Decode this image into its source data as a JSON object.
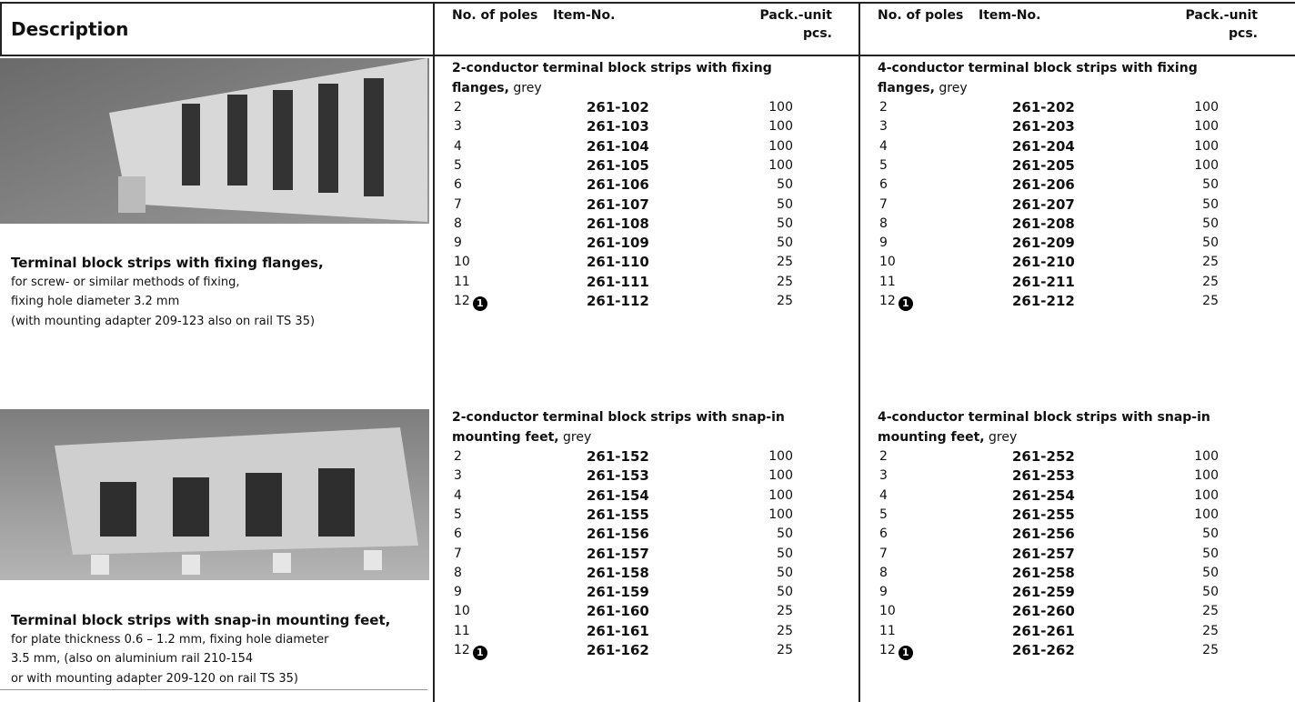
{
  "header": {
    "description": "Description",
    "columns": [
      "No. of poles",
      "Item-No.",
      "Pack.-unit",
      "pcs."
    ]
  },
  "sections": [
    {
      "description": {
        "title": "Terminal block strips with fixing flanges,",
        "lines": [
          "for screw- or similar methods of fixing,",
          "fixing hole diameter 3.2 mm",
          "(with mounting adapter 209-123 also on rail TS 35)"
        ]
      },
      "groups": [
        {
          "title": "2-conductor terminal block strips with fixing",
          "title2": "flanges,",
          "suffix": "grey",
          "rows": [
            {
              "poles": 2,
              "item": "261-102",
              "pack": 100
            },
            {
              "poles": 3,
              "item": "261-103",
              "pack": 100
            },
            {
              "poles": 4,
              "item": "261-104",
              "pack": 100
            },
            {
              "poles": 5,
              "item": "261-105",
              "pack": 100
            },
            {
              "poles": 6,
              "item": "261-106",
              "pack": 50
            },
            {
              "poles": 7,
              "item": "261-107",
              "pack": 50
            },
            {
              "poles": 8,
              "item": "261-108",
              "pack": 50
            },
            {
              "poles": 9,
              "item": "261-109",
              "pack": 50
            },
            {
              "poles": 10,
              "item": "261-110",
              "pack": 25
            },
            {
              "poles": 11,
              "item": "261-111",
              "pack": 25
            },
            {
              "poles": 12,
              "note": "1",
              "item": "261-112",
              "pack": 25
            }
          ]
        },
        {
          "title": "4-conductor terminal block strips with fixing",
          "title2": "flanges,",
          "suffix": "grey",
          "rows": [
            {
              "poles": 2,
              "item": "261-202",
              "pack": 100
            },
            {
              "poles": 3,
              "item": "261-203",
              "pack": 100
            },
            {
              "poles": 4,
              "item": "261-204",
              "pack": 100
            },
            {
              "poles": 5,
              "item": "261-205",
              "pack": 100
            },
            {
              "poles": 6,
              "item": "261-206",
              "pack": 50
            },
            {
              "poles": 7,
              "item": "261-207",
              "pack": 50
            },
            {
              "poles": 8,
              "item": "261-208",
              "pack": 50
            },
            {
              "poles": 9,
              "item": "261-209",
              "pack": 50
            },
            {
              "poles": 10,
              "item": "261-210",
              "pack": 25
            },
            {
              "poles": 11,
              "item": "261-211",
              "pack": 25
            },
            {
              "poles": 12,
              "note": "1",
              "item": "261-212",
              "pack": 25
            }
          ]
        }
      ]
    },
    {
      "description": {
        "title": "Terminal block strips with snap-in mounting feet,",
        "lines": [
          "for plate thickness 0.6 – 1.2 mm, fixing hole diameter",
          "3.5 mm, (also on aluminium rail 210-154",
          "or with mounting adapter 209-120 on rail TS 35)"
        ]
      },
      "groups": [
        {
          "title": "2-conductor terminal block strips with snap-in",
          "title2": "mounting feet,",
          "suffix": "grey",
          "rows": [
            {
              "poles": 2,
              "item": "261-152",
              "pack": 100
            },
            {
              "poles": 3,
              "item": "261-153",
              "pack": 100
            },
            {
              "poles": 4,
              "item": "261-154",
              "pack": 100
            },
            {
              "poles": 5,
              "item": "261-155",
              "pack": 100
            },
            {
              "poles": 6,
              "item": "261-156",
              "pack": 50
            },
            {
              "poles": 7,
              "item": "261-157",
              "pack": 50
            },
            {
              "poles": 8,
              "item": "261-158",
              "pack": 50
            },
            {
              "poles": 9,
              "item": "261-159",
              "pack": 50
            },
            {
              "poles": 10,
              "item": "261-160",
              "pack": 25
            },
            {
              "poles": 11,
              "item": "261-161",
              "pack": 25
            },
            {
              "poles": 12,
              "note": "1",
              "item": "261-162",
              "pack": 25
            }
          ]
        },
        {
          "title": "4-conductor terminal block strips with snap-in",
          "title2": "mounting feet,",
          "suffix": "grey",
          "rows": [
            {
              "poles": 2,
              "item": "261-252",
              "pack": 100
            },
            {
              "poles": 3,
              "item": "261-253",
              "pack": 100
            },
            {
              "poles": 4,
              "item": "261-254",
              "pack": 100
            },
            {
              "poles": 5,
              "item": "261-255",
              "pack": 100
            },
            {
              "poles": 6,
              "item": "261-256",
              "pack": 50
            },
            {
              "poles": 7,
              "item": "261-257",
              "pack": 50
            },
            {
              "poles": 8,
              "item": "261-258",
              "pack": 50
            },
            {
              "poles": 9,
              "item": "261-259",
              "pack": 50
            },
            {
              "poles": 10,
              "item": "261-260",
              "pack": 25
            },
            {
              "poles": 11,
              "item": "261-261",
              "pack": 25
            },
            {
              "poles": 12,
              "note": "1",
              "item": "261-262",
              "pack": 25
            }
          ]
        }
      ]
    }
  ]
}
